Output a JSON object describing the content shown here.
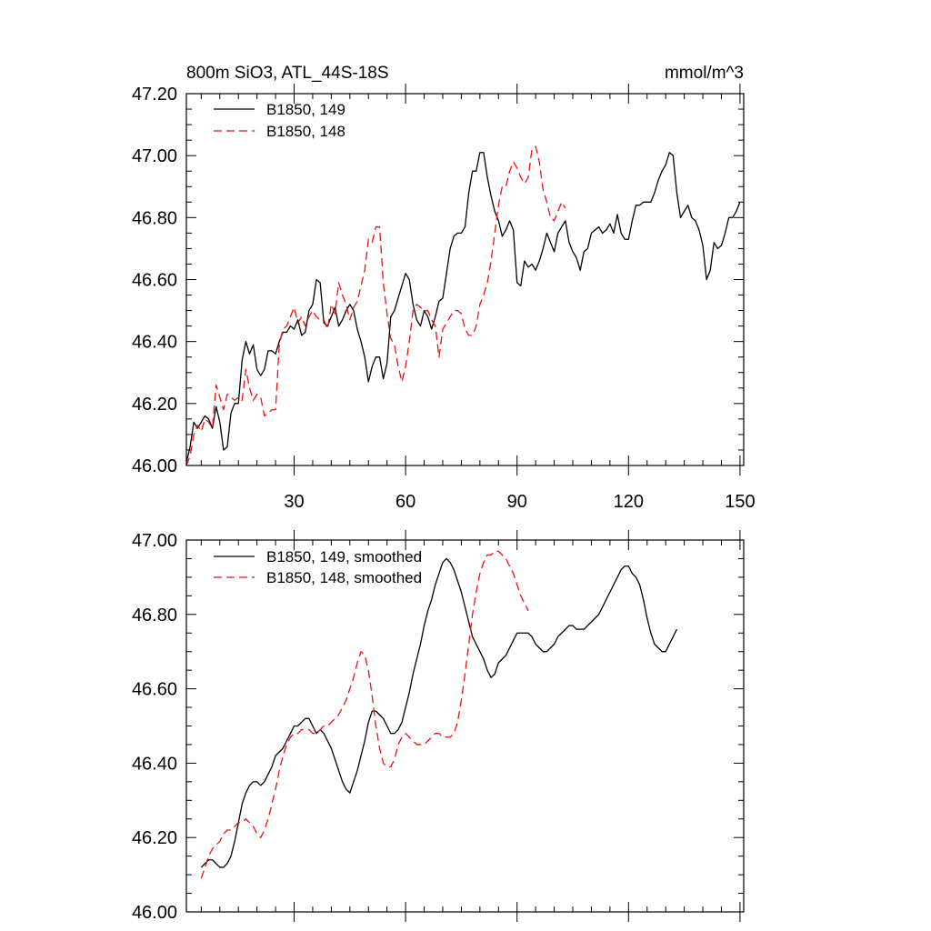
{
  "figure": {
    "background": "#ffffff"
  },
  "chart_data": [
    {
      "type": "line",
      "title": "800m SiO3, ATL_44S-18S",
      "units_label": "mmol/m^3",
      "xlabel": "",
      "ylabel": "",
      "xlim": [
        1,
        151
      ],
      "ylim": [
        46.0,
        47.2
      ],
      "x_ticks": [
        30,
        60,
        90,
        120,
        150
      ],
      "x_tick_labels": [
        "30",
        "60",
        "90",
        "120",
        "150"
      ],
      "y_ticks": [
        46.0,
        46.2,
        46.4,
        46.6,
        46.8,
        47.0,
        47.2
      ],
      "y_tick_labels": [
        "46.00",
        "46.20",
        "46.40",
        "46.60",
        "46.80",
        "47.00",
        "47.20"
      ],
      "grid": false,
      "legend_position": "top-left",
      "series": [
        {
          "name": "B1850, 149",
          "color": "#000000",
          "dash": "solid",
          "x_start": 1,
          "values": [
            46.01,
            46.06,
            46.14,
            46.12,
            46.14,
            46.16,
            46.15,
            46.12,
            46.19,
            46.14,
            46.05,
            46.06,
            46.17,
            46.2,
            46.2,
            46.34,
            46.4,
            46.36,
            46.39,
            46.31,
            46.29,
            46.31,
            46.37,
            46.37,
            46.36,
            46.4,
            46.43,
            46.43,
            46.45,
            46.44,
            46.47,
            46.42,
            46.43,
            46.5,
            46.52,
            46.6,
            46.59,
            46.46,
            46.45,
            46.48,
            46.51,
            46.45,
            46.47,
            46.5,
            46.52,
            46.5,
            46.44,
            46.4,
            46.35,
            46.27,
            46.32,
            46.35,
            46.35,
            46.28,
            46.33,
            46.48,
            46.5,
            46.54,
            46.58,
            46.62,
            46.6,
            46.52,
            46.47,
            46.45,
            46.5,
            46.48,
            46.44,
            46.48,
            46.53,
            46.54,
            46.62,
            46.7,
            46.74,
            46.75,
            46.75,
            46.77,
            46.88,
            46.95,
            46.95,
            47.01,
            47.01,
            46.93,
            46.87,
            46.82,
            46.79,
            46.74,
            46.76,
            46.79,
            46.76,
            46.59,
            46.58,
            46.66,
            46.64,
            46.65,
            46.63,
            46.66,
            46.7,
            46.75,
            46.72,
            46.69,
            46.75,
            46.77,
            46.79,
            46.72,
            46.69,
            46.67,
            46.63,
            46.69,
            46.7,
            46.75,
            46.76,
            46.77,
            46.75,
            46.76,
            46.78,
            46.75,
            46.81,
            46.75,
            46.73,
            46.73,
            46.79,
            46.84,
            46.84,
            46.85,
            46.85,
            46.85,
            46.88,
            46.92,
            46.95,
            46.97,
            47.01,
            47.0,
            46.88,
            46.8,
            46.82,
            46.84,
            46.8,
            46.79,
            46.76,
            46.71,
            46.6,
            46.63,
            46.72,
            46.7,
            46.71,
            46.75,
            46.8,
            46.8,
            46.82,
            46.85
          ]
        },
        {
          "name": "B1850, 148",
          "color": "#ee1111",
          "dash": "dashed",
          "x_start": 1,
          "values": [
            46.0,
            46.03,
            46.1,
            46.13,
            46.11,
            46.15,
            46.14,
            46.12,
            46.26,
            46.22,
            46.18,
            46.23,
            46.22,
            46.21,
            46.22,
            46.21,
            46.31,
            46.25,
            46.21,
            46.23,
            46.22,
            46.16,
            46.17,
            46.18,
            46.18,
            46.39,
            46.44,
            46.45,
            46.48,
            46.51,
            46.46,
            46.48,
            46.45,
            46.48,
            46.5,
            46.48,
            46.47,
            46.47,
            46.44,
            46.52,
            46.49,
            46.59,
            46.55,
            46.52,
            46.47,
            46.51,
            46.53,
            46.58,
            46.63,
            46.73,
            46.72,
            46.77,
            46.77,
            46.59,
            46.49,
            46.41,
            46.39,
            46.32,
            46.27,
            46.32,
            46.4,
            46.5,
            46.52,
            46.51,
            46.5,
            46.5,
            46.47,
            46.45,
            46.35,
            46.44,
            46.46,
            46.48,
            46.5,
            46.5,
            46.49,
            46.44,
            46.42,
            46.42,
            46.45,
            46.52,
            46.55,
            46.59,
            46.66,
            46.75,
            46.84,
            46.9,
            46.9,
            46.95,
            46.98,
            46.96,
            46.93,
            46.91,
            46.93,
            47.02,
            47.03,
            46.98,
            46.89,
            46.85,
            46.8,
            46.79,
            46.82,
            46.85,
            46.83
          ]
        }
      ]
    },
    {
      "type": "line",
      "title": "",
      "xlabel": "",
      "ylabel": "",
      "xlim": [
        1,
        151
      ],
      "ylim": [
        46.0,
        47.0
      ],
      "x_ticks": [
        30,
        60,
        90,
        120,
        150
      ],
      "y_ticks": [
        46.0,
        46.2,
        46.4,
        46.6,
        46.8,
        47.0
      ],
      "y_tick_labels": [
        "46.00",
        "46.20",
        "46.40",
        "46.60",
        "46.80",
        "47.00"
      ],
      "grid": false,
      "legend_position": "top-left",
      "series": [
        {
          "name": "B1850, 149, smoothed",
          "color": "#000000",
          "dash": "solid",
          "x_start": 5,
          "values": [
            46.12,
            46.13,
            46.14,
            46.14,
            46.13,
            46.12,
            46.12,
            46.13,
            46.15,
            46.19,
            46.24,
            46.29,
            46.32,
            46.34,
            46.35,
            46.35,
            46.34,
            46.35,
            46.37,
            46.39,
            46.42,
            46.43,
            46.44,
            46.46,
            46.48,
            46.5,
            46.5,
            46.51,
            46.52,
            46.52,
            46.5,
            46.48,
            46.49,
            46.48,
            46.46,
            46.44,
            46.41,
            46.38,
            46.35,
            46.33,
            46.32,
            46.35,
            46.38,
            46.42,
            46.46,
            46.51,
            46.54,
            46.54,
            46.53,
            46.52,
            46.5,
            46.48,
            46.48,
            46.49,
            46.51,
            46.55,
            46.59,
            46.64,
            46.68,
            46.72,
            46.77,
            46.81,
            46.84,
            46.88,
            46.91,
            46.94,
            46.95,
            46.94,
            46.92,
            46.89,
            46.86,
            46.82,
            46.78,
            46.74,
            46.72,
            46.7,
            46.68,
            46.65,
            46.63,
            46.64,
            46.67,
            46.68,
            46.69,
            46.71,
            46.73,
            46.75,
            46.75,
            46.75,
            46.75,
            46.74,
            46.72,
            46.71,
            46.7,
            46.7,
            46.71,
            46.72,
            46.74,
            46.75,
            46.76,
            46.77,
            46.77,
            46.76,
            46.76,
            46.76,
            46.77,
            46.78,
            46.79,
            46.8,
            46.82,
            46.84,
            46.86,
            46.88,
            46.9,
            46.92,
            46.93,
            46.93,
            46.91,
            46.9,
            46.88,
            46.84,
            46.79,
            46.75,
            46.72,
            46.71,
            46.7,
            46.7,
            46.72,
            46.74,
            46.76
          ]
        },
        {
          "name": "B1850, 148, smoothed",
          "color": "#ee1111",
          "dash": "dashed",
          "x_start": 5,
          "values": [
            46.09,
            46.12,
            46.15,
            46.17,
            46.18,
            46.19,
            46.21,
            46.22,
            46.22,
            46.23,
            46.24,
            46.24,
            46.25,
            46.24,
            46.23,
            46.21,
            46.2,
            46.22,
            46.25,
            46.29,
            46.33,
            46.38,
            46.42,
            46.45,
            46.47,
            46.48,
            46.48,
            46.49,
            46.49,
            46.49,
            46.48,
            46.48,
            46.49,
            46.5,
            46.5,
            46.51,
            46.52,
            46.53,
            46.55,
            46.57,
            46.6,
            46.63,
            46.67,
            46.7,
            46.69,
            46.65,
            46.58,
            46.5,
            46.44,
            46.4,
            46.39,
            46.39,
            46.41,
            46.45,
            46.47,
            46.48,
            46.47,
            46.46,
            46.45,
            46.45,
            46.45,
            46.46,
            46.47,
            46.48,
            46.48,
            46.47,
            46.47,
            46.47,
            46.48,
            46.51,
            46.57,
            46.64,
            46.72,
            46.8,
            46.86,
            46.91,
            46.94,
            46.96,
            46.96,
            46.97,
            46.97,
            46.96,
            46.95,
            46.93,
            46.91,
            46.88,
            46.85,
            46.83,
            46.81
          ]
        }
      ]
    }
  ]
}
